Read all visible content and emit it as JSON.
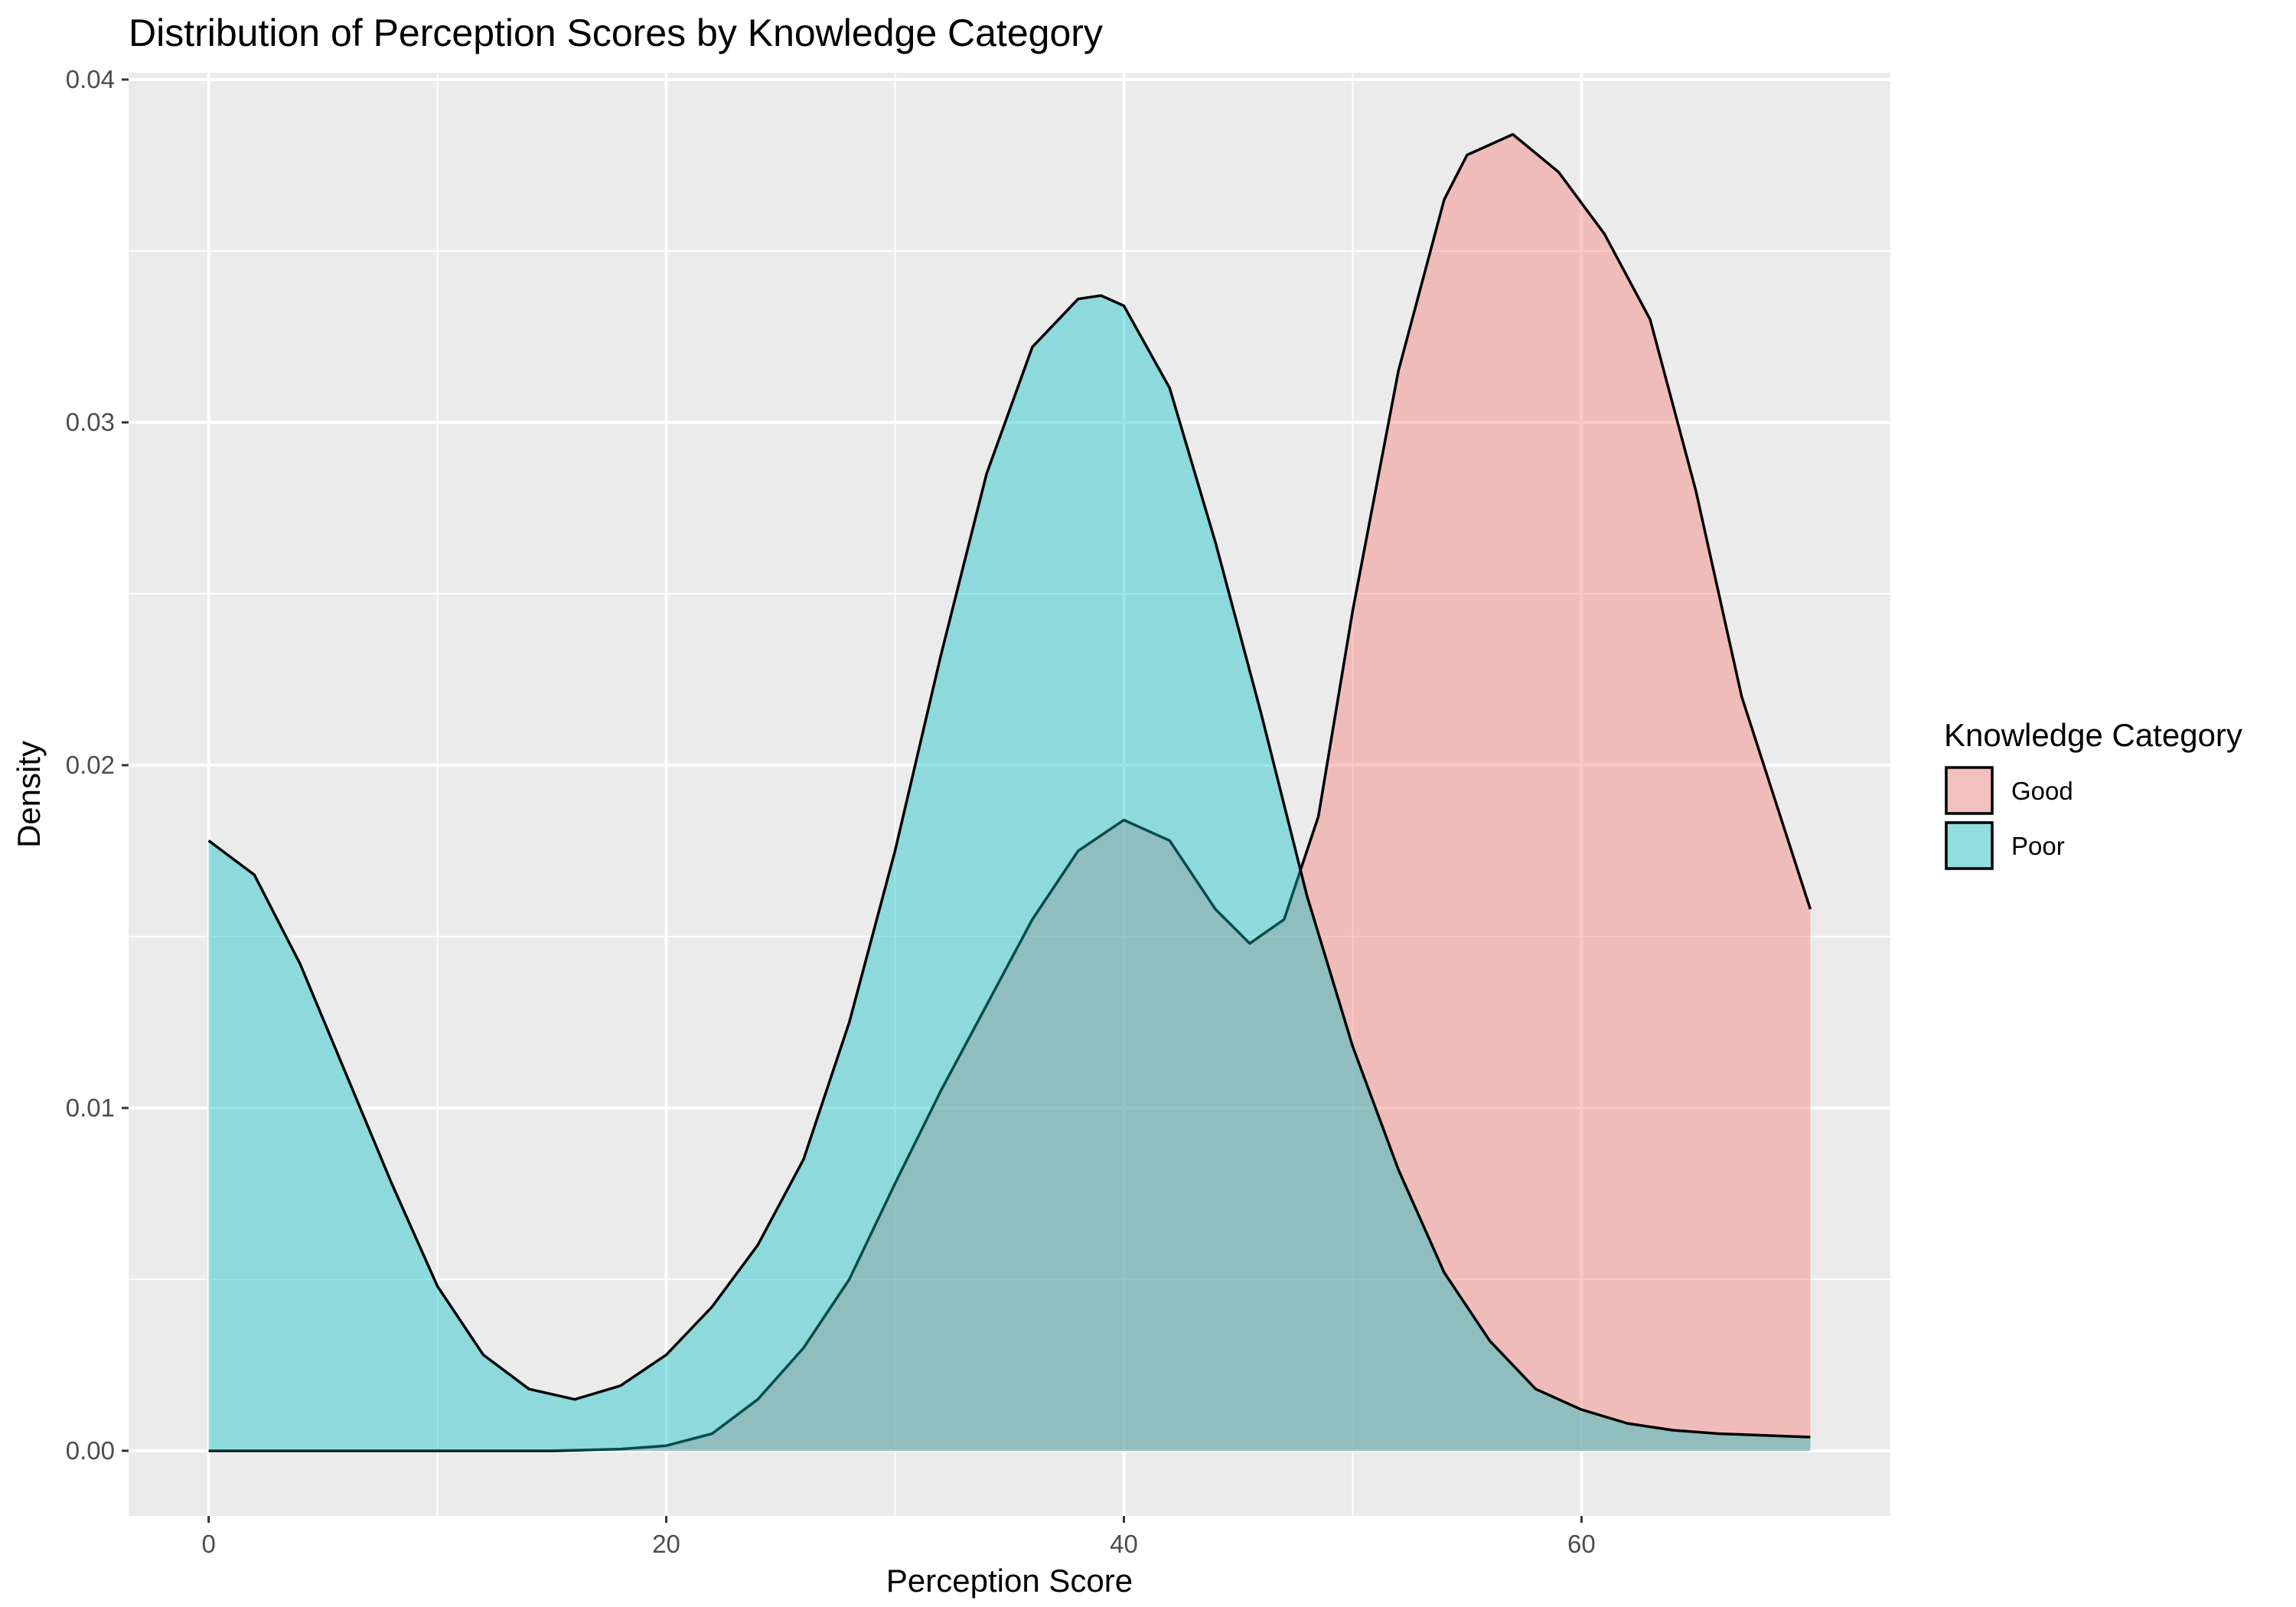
{
  "chart_data": {
    "type": "area",
    "title": "Distribution of Perception Scores by Knowledge Category",
    "xlabel": "Perception Score",
    "ylabel": "Density",
    "xlim": [
      -3.5,
      73.5
    ],
    "ylim": [
      -0.0019,
      0.0402
    ],
    "x_ticks": [
      0,
      20,
      40,
      60
    ],
    "y_ticks": [
      0.0,
      0.01,
      0.02,
      0.03,
      0.04
    ],
    "x_tick_labels": [
      "0",
      "20",
      "40",
      "60"
    ],
    "y_tick_labels": [
      "0.00",
      "0.01",
      "0.02",
      "0.03",
      "0.04"
    ],
    "grid": true,
    "legend": {
      "title": "Knowledge Category",
      "position": "right",
      "entries": [
        "Good",
        "Poor"
      ]
    },
    "series": [
      {
        "name": "Good",
        "color": "#F8766D",
        "x": [
          0,
          15,
          18,
          20,
          22,
          24,
          26,
          28,
          30,
          32,
          34,
          36,
          38,
          40,
          42,
          44,
          45.5,
          47,
          48.5,
          50,
          52,
          54,
          55,
          57,
          59,
          61,
          63,
          65,
          67,
          70
        ],
        "y": [
          0,
          0,
          5e-05,
          0.00015,
          0.0005,
          0.0015,
          0.003,
          0.005,
          0.0078,
          0.0105,
          0.013,
          0.0155,
          0.0175,
          0.0184,
          0.0178,
          0.0158,
          0.0148,
          0.0155,
          0.0185,
          0.0245,
          0.0315,
          0.0365,
          0.0378,
          0.0384,
          0.0373,
          0.0355,
          0.033,
          0.028,
          0.022,
          0.0158
        ]
      },
      {
        "name": "Poor",
        "color": "#00BFC4",
        "x": [
          0,
          2,
          4,
          6,
          8,
          10,
          12,
          14,
          16,
          18,
          20,
          22,
          24,
          26,
          28,
          30,
          32,
          34,
          36,
          38,
          39,
          40,
          42,
          44,
          46,
          48,
          50,
          52,
          54,
          56,
          58,
          60,
          62,
          64,
          66,
          68,
          70
        ],
        "y": [
          0.0178,
          0.0168,
          0.0142,
          0.011,
          0.0078,
          0.0048,
          0.0028,
          0.0018,
          0.0015,
          0.0019,
          0.0028,
          0.0042,
          0.006,
          0.0085,
          0.0125,
          0.0175,
          0.0232,
          0.0285,
          0.0322,
          0.0336,
          0.0337,
          0.0334,
          0.031,
          0.0265,
          0.0215,
          0.0162,
          0.0118,
          0.0082,
          0.0052,
          0.0032,
          0.0018,
          0.0012,
          0.0008,
          0.0006,
          0.0005,
          0.00045,
          0.0004
        ]
      }
    ]
  }
}
